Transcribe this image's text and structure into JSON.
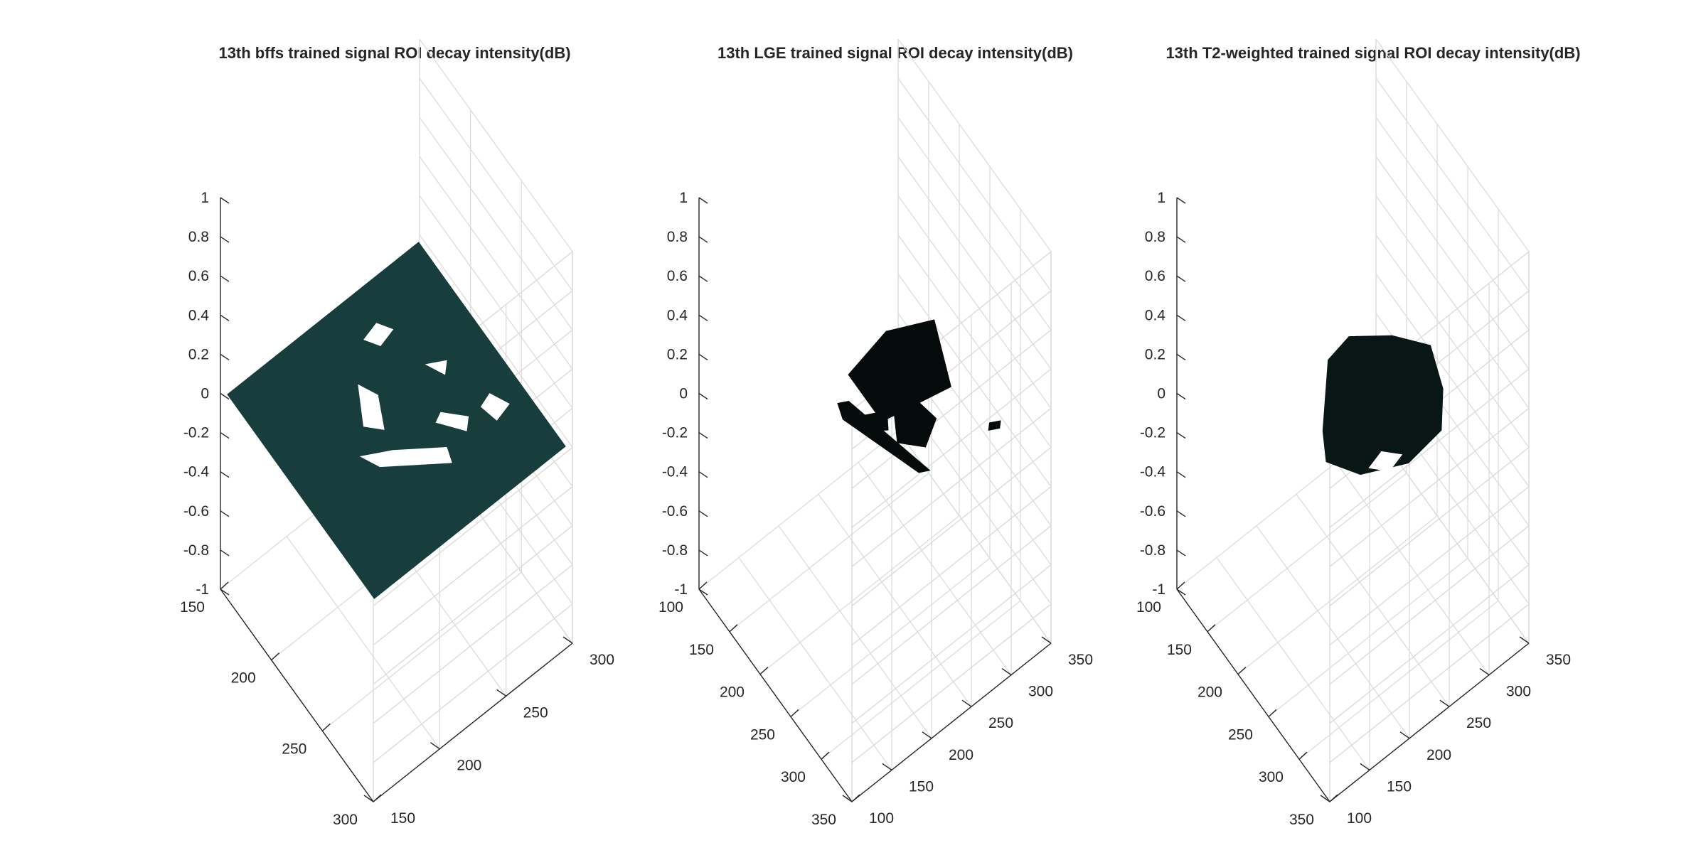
{
  "figure": {
    "background": "#ffffff"
  },
  "chart_data": [
    {
      "type": "surface3d",
      "title": "13th bffs trained signal ROI decay intensity(dB)",
      "xlabel": "",
      "ylabel": "",
      "zlabel": "",
      "x_ticks": [
        150,
        200,
        250,
        300
      ],
      "y_ticks": [
        150,
        200,
        250,
        300
      ],
      "z_ticks": [
        -1,
        -0.8,
        -0.6,
        -0.4,
        -0.2,
        0,
        0.2,
        0.4,
        0.6,
        0.8,
        1
      ],
      "xlim": [
        150,
        300
      ],
      "ylim": [
        150,
        300
      ],
      "zlim": [
        -1,
        1
      ],
      "surface_z": 0,
      "surface_color": "#173d3d",
      "grid": true
    },
    {
      "type": "surface3d",
      "title": "13th LGE trained signal ROI decay intensity(dB)",
      "xlabel": "",
      "ylabel": "",
      "zlabel": "",
      "x_ticks": [
        100,
        150,
        200,
        250,
        300,
        350
      ],
      "y_ticks": [
        100,
        150,
        200,
        250,
        300,
        350
      ],
      "z_ticks": [
        -1,
        -0.8,
        -0.6,
        -0.4,
        -0.2,
        0,
        0.2,
        0.4,
        0.6,
        0.8,
        1
      ],
      "xlim": [
        100,
        350
      ],
      "ylim": [
        100,
        350
      ],
      "zlim": [
        -1,
        1
      ],
      "surface_z": 0,
      "surface_color": "#050b0b",
      "grid": true
    },
    {
      "type": "surface3d",
      "title": "13th T2-weighted trained signal ROI decay intensity(dB)",
      "xlabel": "",
      "ylabel": "",
      "zlabel": "",
      "x_ticks": [
        100,
        150,
        200,
        250,
        300,
        350
      ],
      "y_ticks": [
        100,
        150,
        200,
        250,
        300,
        350
      ],
      "z_ticks": [
        -1,
        -0.8,
        -0.6,
        -0.4,
        -0.2,
        0,
        0.2,
        0.4,
        0.6,
        0.8,
        1
      ],
      "xlim": [
        100,
        350
      ],
      "ylim": [
        100,
        350
      ],
      "zlim": [
        -1,
        1
      ],
      "surface_z": 0,
      "surface_color": "#091616",
      "grid": true
    }
  ]
}
